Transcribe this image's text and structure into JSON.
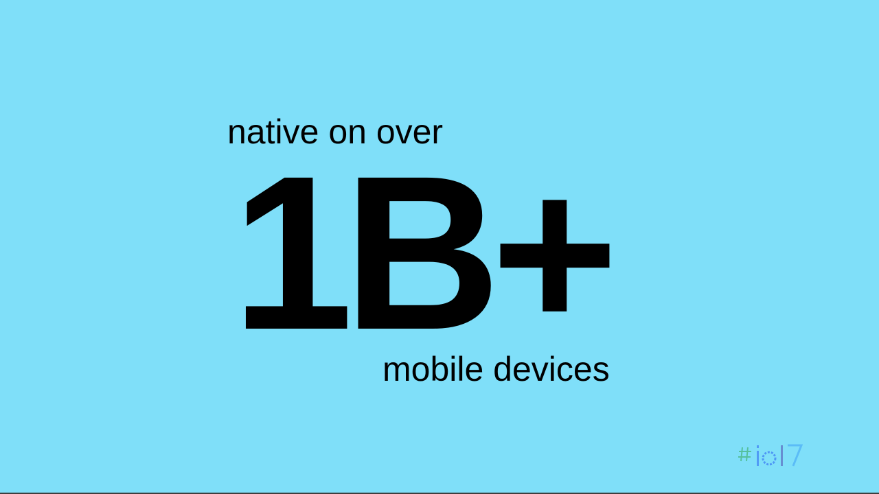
{
  "slide": {
    "line_top": "native on over",
    "big_number": "1B+",
    "line_bottom": "mobile devices",
    "logo_text": "#io17"
  },
  "colors": {
    "background": "#7fdff9",
    "text": "#000000",
    "logo_hash": "#34a853",
    "logo_main": "#4285f4",
    "logo_ring": "#5c6bc0"
  },
  "icons": [
    "io17-logo-icon"
  ]
}
